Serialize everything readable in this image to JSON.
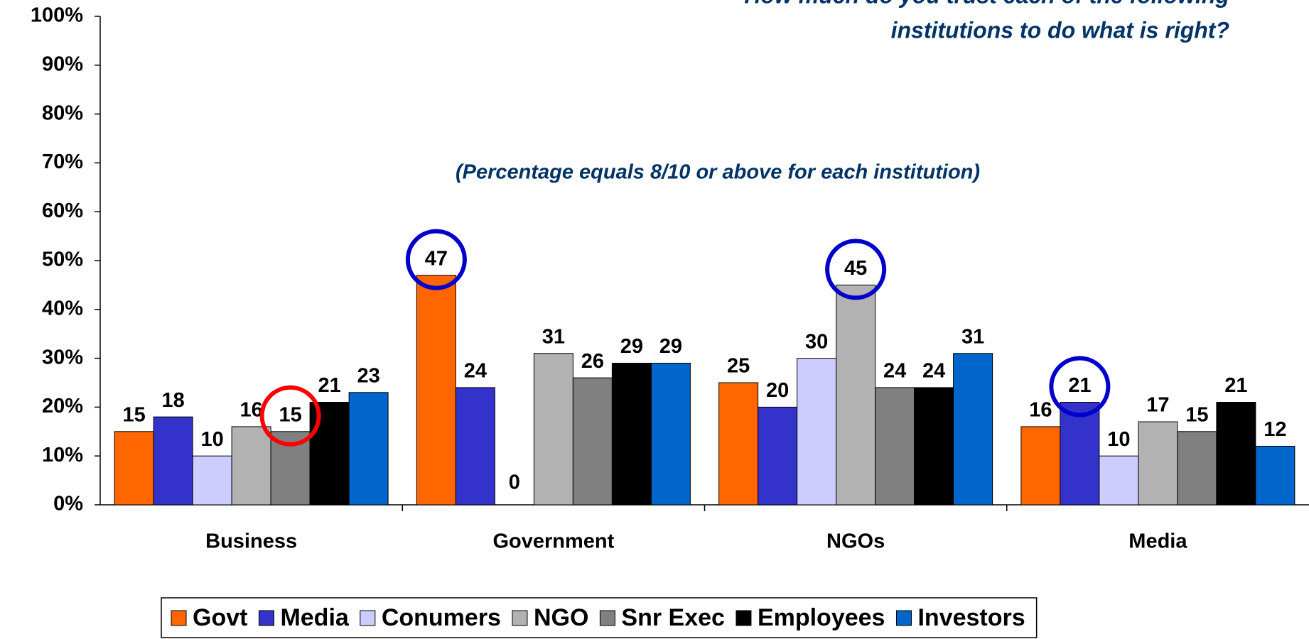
{
  "chart_data": {
    "type": "bar",
    "title": [
      "How much do you trust each of the following",
      "institutions to do what is right?"
    ],
    "subtitle": "(Percentage equals 8/10 or above for each institution)",
    "categories": [
      "Business",
      "Government",
      "NGOs",
      "Media"
    ],
    "series": [
      {
        "name": "Govt",
        "color": "#ff6600",
        "values": [
          15,
          47,
          25,
          16
        ]
      },
      {
        "name": "Media",
        "color": "#3333cc",
        "values": [
          18,
          24,
          20,
          21
        ]
      },
      {
        "name": "Conumers",
        "color": "#ccccff",
        "values": [
          10,
          0,
          30,
          10
        ]
      },
      {
        "name": "NGO",
        "color": "#b2b2b2",
        "values": [
          16,
          31,
          45,
          17
        ]
      },
      {
        "name": "Snr Exec",
        "color": "#808080",
        "values": [
          15,
          26,
          24,
          15
        ]
      },
      {
        "name": "Employees",
        "color": "#000000",
        "values": [
          21,
          29,
          24,
          21
        ]
      },
      {
        "name": "Investors",
        "color": "#0066cc",
        "values": [
          23,
          29,
          31,
          12
        ]
      }
    ],
    "ylim": [
      0,
      100
    ],
    "yticks": [
      {
        "value": 0,
        "label": "0%"
      },
      {
        "value": 10,
        "label": "10%"
      },
      {
        "value": 20,
        "label": "20%"
      },
      {
        "value": 30,
        "label": "30%"
      },
      {
        "value": 40,
        "label": "40%"
      },
      {
        "value": 50,
        "label": "50%"
      },
      {
        "value": 60,
        "label": "60%"
      },
      {
        "value": 70,
        "label": "70%"
      },
      {
        "value": 80,
        "label": "80%"
      },
      {
        "value": 90,
        "label": "90%"
      },
      {
        "value": 100,
        "label": "100%"
      }
    ],
    "grid": false,
    "legend": "bottom",
    "highlights": [
      {
        "series": "Snr Exec",
        "category": "Business",
        "color": "#ff0000"
      },
      {
        "series": "Govt",
        "category": "Government",
        "color": "#0000cc"
      },
      {
        "series": "NGO",
        "category": "NGOs",
        "color": "#0000cc"
      },
      {
        "series": "Media",
        "category": "Media",
        "color": "#0000cc"
      }
    ]
  }
}
